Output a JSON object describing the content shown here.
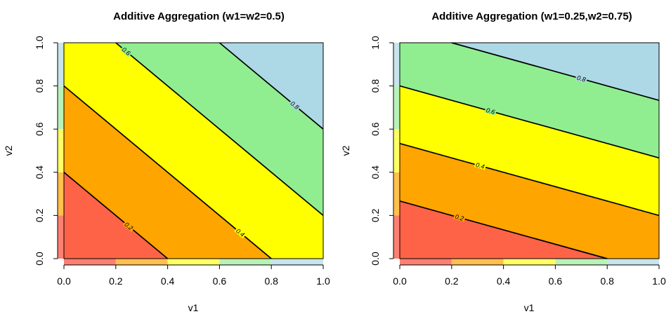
{
  "colors": {
    "band_0_0.2": "#ff6347",
    "band_0.2_0.4": "#ffa500",
    "band_0.4_0.6": "#ffff00",
    "band_0.6_0.8": "#90ee90",
    "band_0.8_1": "#add8e6",
    "legend_strip": [
      "#fa8072",
      "#ffc04d",
      "#ffff66",
      "#b8f2b8",
      "#c8e4ec"
    ],
    "contour_line": "#000000"
  },
  "chart_data": [
    {
      "type": "contour",
      "title": "Additive Aggregation (w1=w2=0.5)",
      "xlabel": "v1",
      "ylabel": "v2",
      "xlim": [
        0,
        1
      ],
      "ylim": [
        0,
        1
      ],
      "x_ticks": [
        "0.0",
        "0.2",
        "0.4",
        "0.6",
        "0.8",
        "1.0"
      ],
      "y_ticks": [
        "0.0",
        "0.2",
        "0.4",
        "0.6",
        "0.8",
        "1.0"
      ],
      "function": "z = 0.5*v1 + 0.5*v2",
      "weights": {
        "w1": 0.5,
        "w2": 0.5
      },
      "levels": [
        0.2,
        0.4,
        0.6,
        0.8
      ],
      "bands": [
        [
          0,
          0.2
        ],
        [
          0.2,
          0.4
        ],
        [
          0.4,
          0.6
        ],
        [
          0.6,
          0.8
        ],
        [
          0.8,
          1.0
        ]
      ],
      "contour_labels": [
        {
          "level": 0.2,
          "text": "0.2",
          "x": 0.25
        },
        {
          "level": 0.4,
          "text": "0.4",
          "x": 0.68
        },
        {
          "level": 0.6,
          "text": "0.6",
          "x": 0.24
        },
        {
          "level": 0.8,
          "text": "0.8",
          "x": 0.89
        }
      ],
      "grid": false,
      "legend": "color strips along left and bottom axes"
    },
    {
      "type": "contour",
      "title": "Additive Aggregation (w1=0.25,w2=0.75)",
      "xlabel": "v1",
      "ylabel": "v2",
      "xlim": [
        0,
        1
      ],
      "ylim": [
        0,
        1
      ],
      "x_ticks": [
        "0.0",
        "0.2",
        "0.4",
        "0.6",
        "0.8",
        "1.0"
      ],
      "y_ticks": [
        "0.0",
        "0.2",
        "0.4",
        "0.6",
        "0.8",
        "1.0"
      ],
      "function": "z = 0.25*v1 + 0.75*v2",
      "weights": {
        "w1": 0.25,
        "w2": 0.75
      },
      "levels": [
        0.2,
        0.4,
        0.6,
        0.8
      ],
      "bands": [
        [
          0,
          0.2
        ],
        [
          0.2,
          0.4
        ],
        [
          0.4,
          0.6
        ],
        [
          0.6,
          0.8
        ],
        [
          0.8,
          1.0
        ]
      ],
      "contour_labels": [
        {
          "level": 0.2,
          "text": "0.2",
          "x": 0.23
        },
        {
          "level": 0.4,
          "text": "0.4",
          "x": 0.31
        },
        {
          "level": 0.6,
          "text": "0.6",
          "x": 0.35
        },
        {
          "level": 0.8,
          "text": "0.8",
          "x": 0.7
        }
      ],
      "grid": false,
      "legend": "color strips along left and bottom axes"
    }
  ]
}
